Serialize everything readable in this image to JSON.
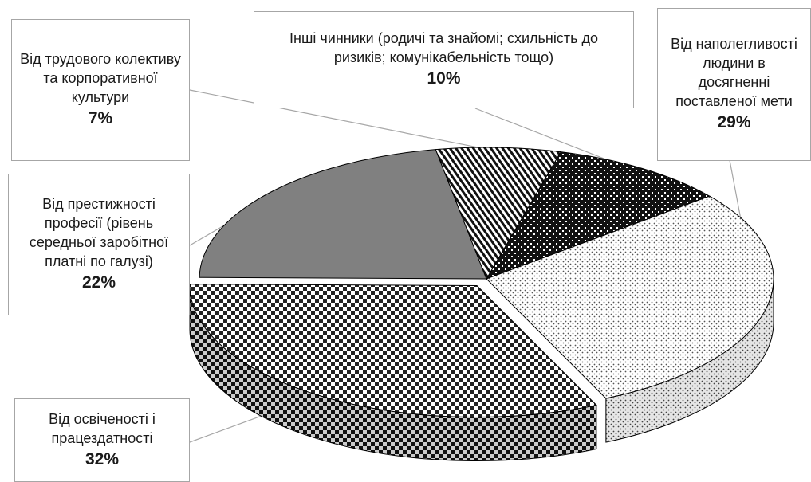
{
  "chart_data": {
    "type": "pie",
    "variant": "3d-exploded-pie",
    "categories": [
      "Інші чинники (родичі та знайомі; схильність до ризиків; комунікабельність тощо)",
      "Від наполегливості людини в досягненні поставленої мети",
      "Від освіченості і працездатності",
      "Від престижності професії (рівень середньої заробітної платні по галузі)",
      "Від трудового колективу та корпоративної культури"
    ],
    "values": [
      10,
      29,
      32,
      22,
      7
    ],
    "value_labels": [
      "10%",
      "29%",
      "32%",
      "22%",
      "7%"
    ],
    "legend": "none",
    "grid": false
  },
  "callouts": {
    "other": {
      "label": "Інші чинники (родичі та знайомі; схильність до ризиків; комунікабельність тощо)",
      "pct": "10%"
    },
    "persist": {
      "label": "Від наполегливості людини в досягненні поставленої мети",
      "pct": "29%"
    },
    "edu": {
      "label": "Від освіченості і працездатності",
      "pct": "32%"
    },
    "prest": {
      "label": "Від престижності професії (рівень середньої заробітної платні по галузі)",
      "pct": "22%"
    },
    "team": {
      "label": "Від трудового колективу та корпоративної культури",
      "pct": "7%"
    }
  },
  "colors": {
    "outline": "#000000",
    "leader": "#a6a6a6",
    "prestige_fill": "#808080",
    "prestige_side": "#595959"
  }
}
